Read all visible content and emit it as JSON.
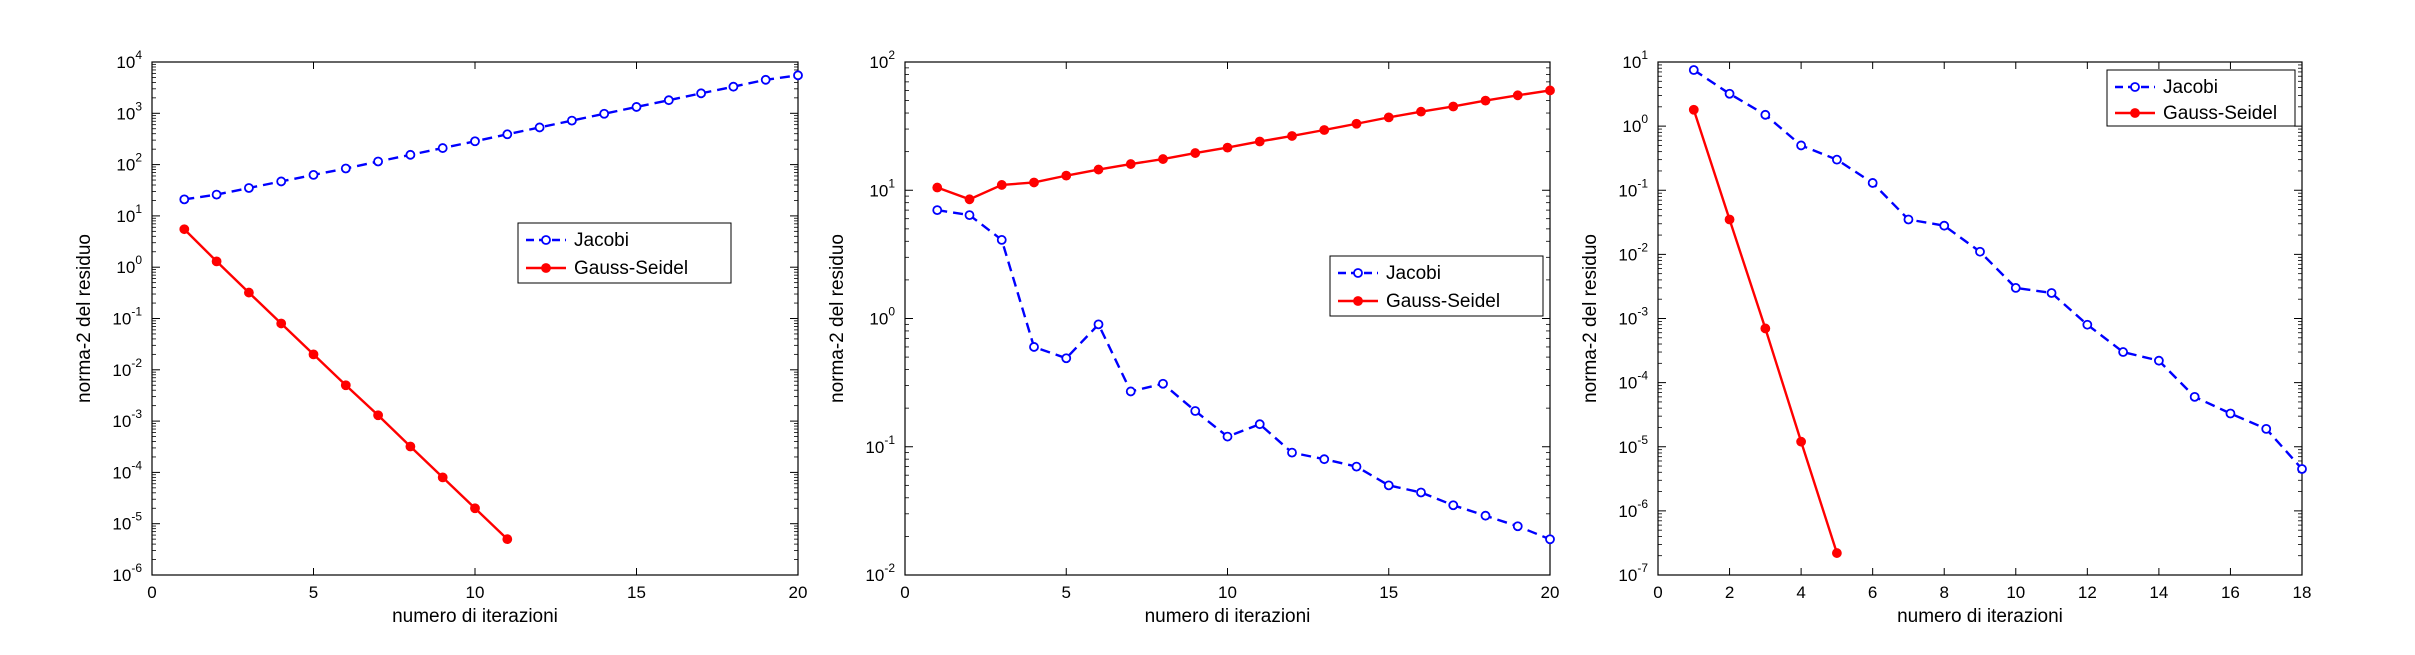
{
  "colors": {
    "jacobi": "#0000ff",
    "gauss_seidel": "#ff0000",
    "axes": "#000000",
    "background": "#ffffff"
  },
  "chart_data": [
    {
      "type": "line",
      "xlabel": "numero di iterazioni",
      "ylabel": "norma-2 del residuo",
      "xlim": [
        0,
        20
      ],
      "ylim": [
        1e-06,
        10000.0
      ],
      "yscale": "log",
      "xticks": [
        "0",
        "5",
        "10",
        "15",
        "20"
      ],
      "yticks": [
        {
          "base": "10",
          "exp": "-6"
        },
        {
          "base": "10",
          "exp": "-5"
        },
        {
          "base": "10",
          "exp": "-4"
        },
        {
          "base": "10",
          "exp": "-3"
        },
        {
          "base": "10",
          "exp": "-2"
        },
        {
          "base": "10",
          "exp": "-1"
        },
        {
          "base": "10",
          "exp": "0"
        },
        {
          "base": "10",
          "exp": "1"
        },
        {
          "base": "10",
          "exp": "2"
        },
        {
          "base": "10",
          "exp": "3"
        },
        {
          "base": "10",
          "exp": "4"
        }
      ],
      "grid": false,
      "legend_position": "center-right",
      "series": [
        {
          "name": "Jacobi",
          "color": "#0000ff",
          "line": "dashed",
          "marker": "open-circle",
          "x": [
            1,
            2,
            3,
            4,
            5,
            6,
            7,
            8,
            9,
            10,
            11,
            12,
            13,
            14,
            15,
            16,
            17,
            18,
            19,
            20
          ],
          "y": [
            21,
            26,
            35,
            47,
            63,
            84,
            115,
            155,
            210,
            285,
            390,
            530,
            720,
            980,
            1330,
            1800,
            2450,
            3300,
            4500,
            5500
          ]
        },
        {
          "name": "Gauss-Seidel",
          "color": "#ff0000",
          "line": "solid",
          "marker": "filled-circle",
          "x": [
            1,
            2,
            3,
            4,
            5,
            6,
            7,
            8,
            9,
            10,
            11
          ],
          "y": [
            5.5,
            1.3,
            0.32,
            0.08,
            0.02,
            0.005,
            0.0013,
            0.00032,
            8e-05,
            2e-05,
            5e-06
          ]
        }
      ]
    },
    {
      "type": "line",
      "xlabel": "numero di iterazioni",
      "ylabel": "norma-2 del residuo",
      "xlim": [
        0,
        20
      ],
      "ylim": [
        0.01,
        100.0
      ],
      "yscale": "log",
      "xticks": [
        "0",
        "5",
        "10",
        "15",
        "20"
      ],
      "yticks": [
        {
          "base": "10",
          "exp": "-2"
        },
        {
          "base": "10",
          "exp": "-1"
        },
        {
          "base": "10",
          "exp": "0"
        },
        {
          "base": "10",
          "exp": "1"
        },
        {
          "base": "10",
          "exp": "2"
        }
      ],
      "grid": false,
      "legend_position": "center-right",
      "series": [
        {
          "name": "Jacobi",
          "color": "#0000ff",
          "line": "dashed",
          "marker": "open-circle",
          "x": [
            1,
            2,
            3,
            4,
            5,
            6,
            7,
            8,
            9,
            10,
            11,
            12,
            13,
            14,
            15,
            16,
            17,
            18,
            19,
            20
          ],
          "y": [
            7.0,
            6.4,
            4.1,
            0.6,
            0.49,
            0.9,
            0.27,
            0.31,
            0.19,
            0.12,
            0.15,
            0.09,
            0.08,
            0.07,
            0.05,
            0.044,
            0.035,
            0.029,
            0.024,
            0.019
          ]
        },
        {
          "name": "Gauss-Seidel",
          "color": "#ff0000",
          "line": "solid",
          "marker": "filled-circle",
          "x": [
            1,
            2,
            3,
            4,
            5,
            6,
            7,
            8,
            9,
            10,
            11,
            12,
            13,
            14,
            15,
            16,
            17,
            18,
            19,
            20
          ],
          "y": [
            10.5,
            8.5,
            11.0,
            11.5,
            13.0,
            14.5,
            16.0,
            17.5,
            19.5,
            21.5,
            24.0,
            26.5,
            29.5,
            33.0,
            37.0,
            41.0,
            45.0,
            50.0,
            55.0,
            60.0
          ]
        }
      ]
    },
    {
      "type": "line",
      "xlabel": "numero di iterazioni",
      "ylabel": "norma-2 del residuo",
      "xlim": [
        0,
        18
      ],
      "ylim": [
        1e-07,
        10.0
      ],
      "yscale": "log",
      "xticks": [
        "0",
        "2",
        "4",
        "6",
        "8",
        "10",
        "12",
        "14",
        "16",
        "18"
      ],
      "yticks": [
        {
          "base": "10",
          "exp": "-7"
        },
        {
          "base": "10",
          "exp": "-6"
        },
        {
          "base": "10",
          "exp": "-5"
        },
        {
          "base": "10",
          "exp": "-4"
        },
        {
          "base": "10",
          "exp": "-3"
        },
        {
          "base": "10",
          "exp": "-2"
        },
        {
          "base": "10",
          "exp": "-1"
        },
        {
          "base": "10",
          "exp": "0"
        },
        {
          "base": "10",
          "exp": "1"
        }
      ],
      "grid": false,
      "legend_position": "top-right",
      "series": [
        {
          "name": "Jacobi",
          "color": "#0000ff",
          "line": "dashed",
          "marker": "open-circle",
          "x": [
            1,
            2,
            3,
            4,
            5,
            6,
            7,
            8,
            9,
            10,
            11,
            12,
            13,
            14,
            15,
            16,
            17,
            18
          ],
          "y": [
            7.5,
            3.2,
            1.5,
            0.5,
            0.3,
            0.13,
            0.035,
            0.028,
            0.011,
            0.003,
            0.0025,
            0.0008,
            0.0003,
            0.00022,
            6e-05,
            3.3e-05,
            1.9e-05,
            4.5e-06
          ]
        },
        {
          "name": "Gauss-Seidel",
          "color": "#ff0000",
          "line": "solid",
          "marker": "filled-circle",
          "x": [
            1,
            2,
            3,
            4,
            5
          ],
          "y": [
            1.8,
            0.035,
            0.0007,
            1.2e-05,
            2.2e-07
          ]
        }
      ]
    }
  ]
}
